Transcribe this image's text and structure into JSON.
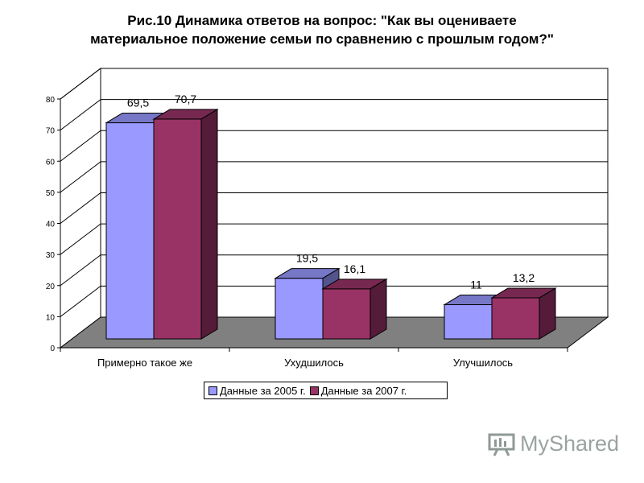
{
  "title_line1": "Рис.10    Динамика ответов на вопрос:  \"Как вы оцениваете",
  "title_line2": "материальное положение семьи по сравнению с прошлым годом?\"",
  "watermark": "MyShared",
  "chart_data": {
    "type": "bar",
    "categories": [
      "Примерно такое же",
      "Ухудшилось",
      "Улучшилось"
    ],
    "series": [
      {
        "name": "Данные за 2005 г.",
        "values": [
          69.5,
          19.5,
          11
        ],
        "labels": [
          "69,5",
          "19,5",
          "11"
        ],
        "color": "#9999ff"
      },
      {
        "name": "Данные за 2007 г.",
        "values": [
          70.7,
          16.1,
          13.2
        ],
        "labels": [
          "70,7",
          "16,1",
          "13,2"
        ],
        "color": "#993366"
      }
    ],
    "ylim": [
      0,
      80
    ],
    "yticks": [
      0,
      10,
      20,
      30,
      40,
      50,
      60,
      70,
      80
    ],
    "grid": true,
    "legend_position": "bottom",
    "three_d": true
  }
}
